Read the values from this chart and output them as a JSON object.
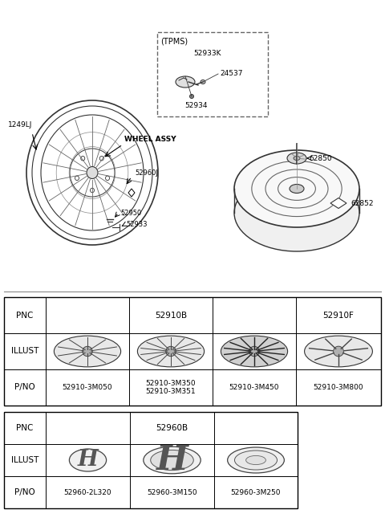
{
  "bg_color": "#ffffff",
  "table1": {
    "col1_pno": "52910-3M050",
    "col2_pno": "52910-3M350\n52910-3M351",
    "col3_pno": "52910-3M450",
    "col4_pno": "52910-3M800"
  },
  "table2": {
    "col1_pno": "52960-2L320",
    "col2_pno": "52960-3M150",
    "col3_pno": "52960-3M250"
  },
  "diagram_labels": {
    "tpms": "(TPMS)",
    "p52933K": "52933K",
    "p24537": "24537",
    "p52934": "52934",
    "p1249LJ": "1249LJ",
    "wheel_assy": "WHEEL ASSY",
    "p52960J": "52960J",
    "p52950": "52950",
    "p52933": "52933",
    "p62850": "62850",
    "p62852": "62852"
  },
  "line_color": "#333333",
  "text_color": "#000000",
  "table_line_color": "#555555"
}
